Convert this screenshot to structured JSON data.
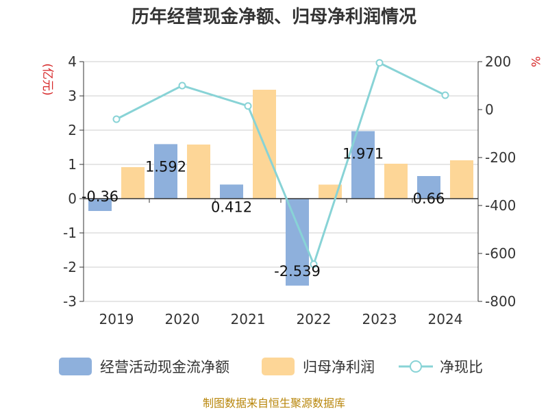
{
  "chart_data": {
    "type": "bar",
    "title": "历年经营现金净额、归母净利润情况",
    "categories": [
      "2019",
      "2020",
      "2021",
      "2022",
      "2023",
      "2024"
    ],
    "series": [
      {
        "name": "经营活动现金流净额",
        "type": "bar",
        "axis": "left",
        "color": "#8eb0dc",
        "values": [
          -0.36,
          1.592,
          0.412,
          -2.539,
          1.971,
          0.66
        ],
        "labels": [
          "-0.36",
          "1.592",
          "0.412",
          "-2.539",
          "1.971",
          "0.66"
        ]
      },
      {
        "name": "归母净利润",
        "type": "bar",
        "axis": "left",
        "color": "#fdd697",
        "values": [
          0.92,
          1.58,
          3.18,
          0.41,
          1.02,
          1.12
        ]
      },
      {
        "name": "净现比",
        "type": "line",
        "axis": "right",
        "color": "#88d3d6",
        "values": [
          -40,
          100,
          15,
          -645,
          195,
          60
        ]
      }
    ],
    "left_axis": {
      "unit": "(亿元)",
      "ylim": [
        -3,
        4
      ],
      "ticks": [
        "4",
        "3",
        "2",
        "1",
        "0",
        "-1",
        "-2",
        "-3"
      ]
    },
    "right_axis": {
      "unit": "%",
      "ylim": [
        -800,
        200
      ],
      "ticks": [
        "200",
        "0",
        "-200",
        "-400",
        "-600",
        "-800"
      ]
    },
    "source": "制图数据来自恒生聚源数据库"
  }
}
